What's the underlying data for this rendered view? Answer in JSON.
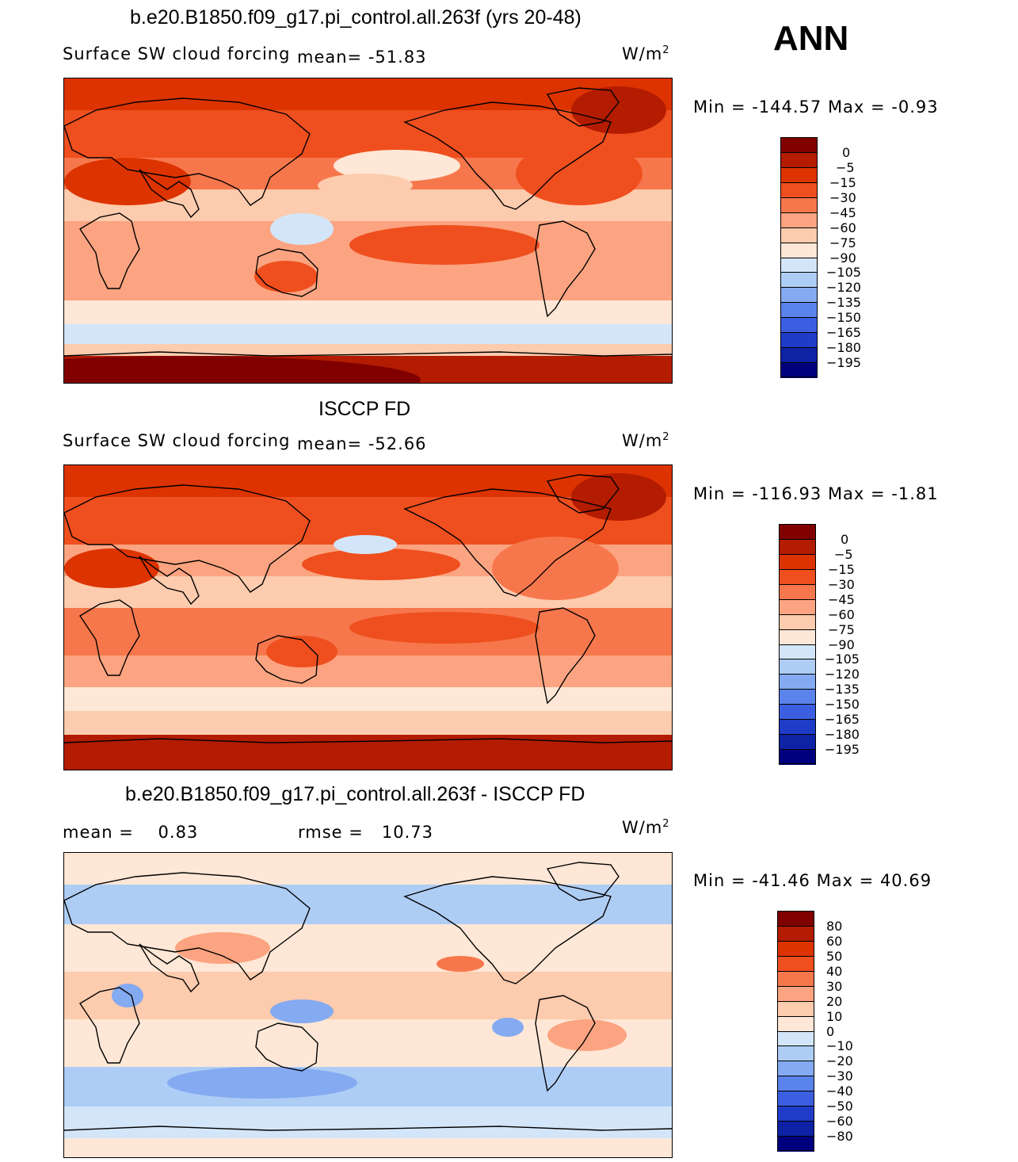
{
  "season": "ANN",
  "panels": [
    {
      "title": "b.e20.B1850.f09_g17.pi_control.all.263f (yrs 20-48)",
      "variable": "Surface SW cloud forcing",
      "mean_label": "mean=",
      "mean_value": "-51.83",
      "units": "W/m",
      "units_exp": "2",
      "minmax": "Min = -144.57 Max =   -0.93",
      "colorbar_labels": [
        "0",
        "-5",
        "-15",
        "-30",
        "-45",
        "-60",
        "-75",
        "-90",
        "-105",
        "-120",
        "-135",
        "-150",
        "-165",
        "-180",
        "-195"
      ]
    },
    {
      "title": "ISCCP FD",
      "variable": "Surface SW cloud forcing",
      "mean_label": "mean=",
      "mean_value": "-52.66",
      "units": "W/m",
      "units_exp": "2",
      "minmax": "Min = -116.93 Max =   -1.81",
      "colorbar_labels": [
        "0",
        "-5",
        "-15",
        "-30",
        "-45",
        "-60",
        "-75",
        "-90",
        "-105",
        "-120",
        "-135",
        "-150",
        "-165",
        "-180",
        "-195"
      ]
    },
    {
      "title": "b.e20.B1850.f09_g17.pi_control.all.263f - ISCCP FD",
      "mean_label": "mean =",
      "mean_value": "0.83",
      "rmse_label": "rmse =",
      "rmse_value": "10.73",
      "units": "W/m",
      "units_exp": "2",
      "minmax": "Min = -41.46 Max =  40.69",
      "colorbar_labels": [
        "80",
        "60",
        "50",
        "40",
        "30",
        "20",
        "10",
        "0",
        "-10",
        "-20",
        "-30",
        "-40",
        "-50",
        "-60",
        "-80"
      ]
    }
  ],
  "colors": {
    "scale": [
      "#800000",
      "#b31c00",
      "#dd3300",
      "#ef4f1e",
      "#f7774c",
      "#fca481",
      "#fdcbad",
      "#fee7d6",
      "#d3e6f9",
      "#aecdf5",
      "#84aaf1",
      "#5b83ec",
      "#3b5fe0",
      "#1f3cc9",
      "#0d22a5",
      "#00007f"
    ]
  },
  "chart_data": [
    {
      "type": "heatmap",
      "title": "b.e20.B1850.f09_g17.pi_control.all.263f (yrs 20-48)",
      "subtitle": "Surface SW cloud forcing",
      "units": "W/m2",
      "mean": -51.83,
      "min": -144.57,
      "max": -0.93,
      "contour_levels": [
        0,
        -5,
        -15,
        -30,
        -45,
        -60,
        -75,
        -90,
        -105,
        -120,
        -135,
        -150,
        -165,
        -180,
        -195
      ]
    },
    {
      "type": "heatmap",
      "title": "ISCCP FD",
      "subtitle": "Surface SW cloud forcing",
      "units": "W/m2",
      "mean": -52.66,
      "min": -116.93,
      "max": -1.81,
      "contour_levels": [
        0,
        -5,
        -15,
        -30,
        -45,
        -60,
        -75,
        -90,
        -105,
        -120,
        -135,
        -150,
        -165,
        -180,
        -195
      ]
    },
    {
      "type": "heatmap",
      "title": "b.e20.B1850.f09_g17.pi_control.all.263f - ISCCP FD",
      "units": "W/m2",
      "mean": 0.83,
      "rmse": 10.73,
      "min": -41.46,
      "max": 40.69,
      "contour_levels": [
        80,
        60,
        50,
        40,
        30,
        20,
        10,
        0,
        -10,
        -20,
        -30,
        -40,
        -50,
        -60,
        -80
      ]
    }
  ]
}
